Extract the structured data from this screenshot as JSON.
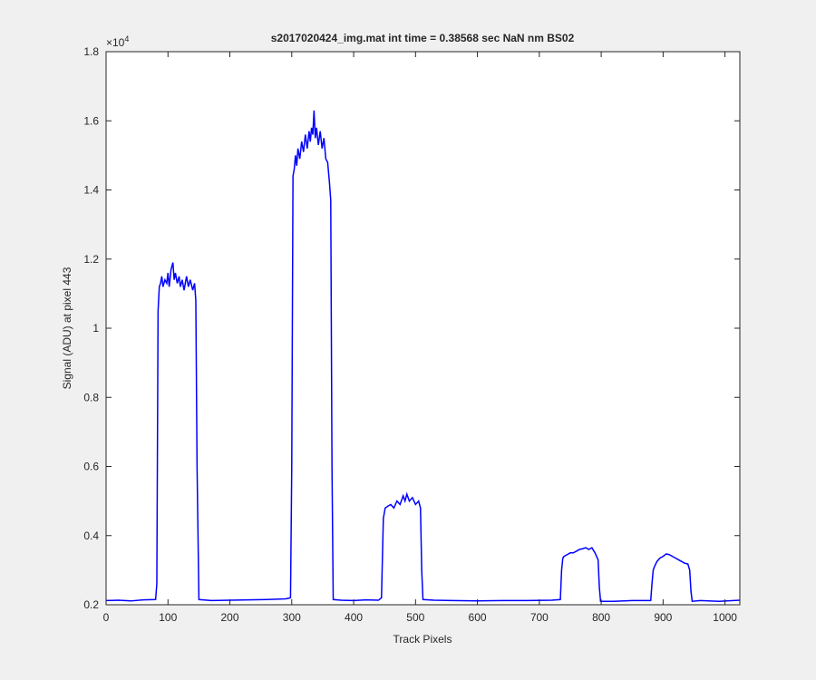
{
  "chart_data": {
    "type": "line",
    "title": "s2017020424_img.mat int time = 0.38568 sec  NaN nm BS02",
    "xlabel": "Track Pixels",
    "ylabel": "Signal (ADU) at pixel 443",
    "y_multiplier": {
      "base": "×10",
      "exponent": "4"
    },
    "x": [
      0,
      20,
      40,
      60,
      80,
      82,
      84,
      86,
      88,
      90,
      92,
      95,
      98,
      100,
      102,
      105,
      108,
      110,
      112,
      115,
      118,
      120,
      123,
      126,
      130,
      133,
      136,
      140,
      143,
      145,
      147,
      150,
      170,
      200,
      230,
      260,
      290,
      298,
      300,
      302,
      304,
      306,
      308,
      310,
      313,
      316,
      319,
      322,
      325,
      328,
      330,
      332,
      334,
      336,
      338,
      340,
      343,
      346,
      349,
      352,
      355,
      358,
      361,
      363,
      365,
      367,
      380,
      400,
      420,
      440,
      445,
      448,
      451,
      455,
      460,
      465,
      470,
      475,
      480,
      483,
      486,
      490,
      495,
      500,
      505,
      508,
      510,
      512,
      530,
      560,
      600,
      640,
      680,
      720,
      734,
      736,
      738,
      740,
      745,
      750,
      755,
      760,
      765,
      770,
      775,
      780,
      785,
      790,
      795,
      797,
      799,
      820,
      850,
      880,
      882,
      884,
      886,
      890,
      895,
      900,
      905,
      910,
      915,
      920,
      925,
      930,
      935,
      940,
      943,
      945,
      947,
      960,
      990,
      1024
    ],
    "series": [
      {
        "color": "#0000ff",
        "values": [
          0.212,
          0.213,
          0.211,
          0.214,
          0.215,
          0.26,
          1.05,
          1.12,
          1.13,
          1.15,
          1.12,
          1.14,
          1.13,
          1.16,
          1.12,
          1.17,
          1.19,
          1.14,
          1.16,
          1.13,
          1.15,
          1.12,
          1.14,
          1.11,
          1.15,
          1.12,
          1.14,
          1.11,
          1.13,
          1.08,
          0.6,
          0.215,
          0.212,
          0.213,
          0.214,
          0.215,
          0.217,
          0.22,
          0.6,
          1.44,
          1.46,
          1.5,
          1.47,
          1.52,
          1.49,
          1.54,
          1.51,
          1.56,
          1.52,
          1.57,
          1.54,
          1.58,
          1.56,
          1.63,
          1.55,
          1.58,
          1.53,
          1.57,
          1.52,
          1.55,
          1.49,
          1.48,
          1.42,
          1.37,
          0.6,
          0.215,
          0.213,
          0.212,
          0.214,
          0.213,
          0.22,
          0.45,
          0.48,
          0.485,
          0.49,
          0.48,
          0.5,
          0.49,
          0.515,
          0.5,
          0.52,
          0.5,
          0.51,
          0.49,
          0.5,
          0.48,
          0.3,
          0.215,
          0.213,
          0.212,
          0.211,
          0.212,
          0.212,
          0.213,
          0.215,
          0.3,
          0.335,
          0.34,
          0.345,
          0.35,
          0.35,
          0.355,
          0.36,
          0.362,
          0.365,
          0.36,
          0.365,
          0.35,
          0.33,
          0.25,
          0.21,
          0.21,
          0.212,
          0.212,
          0.26,
          0.3,
          0.31,
          0.325,
          0.335,
          0.34,
          0.347,
          0.345,
          0.34,
          0.335,
          0.33,
          0.325,
          0.32,
          0.318,
          0.3,
          0.24,
          0.21,
          0.212,
          0.21,
          0.213
        ]
      }
    ],
    "xlim": [
      0,
      1024
    ],
    "ylim": [
      0.2,
      1.8
    ],
    "xticks": [
      0,
      100,
      200,
      300,
      400,
      500,
      600,
      700,
      800,
      900,
      1000
    ],
    "yticks": [
      0.2,
      0.4,
      0.6,
      0.8,
      1,
      1.2,
      1.4,
      1.6,
      1.8
    ]
  }
}
